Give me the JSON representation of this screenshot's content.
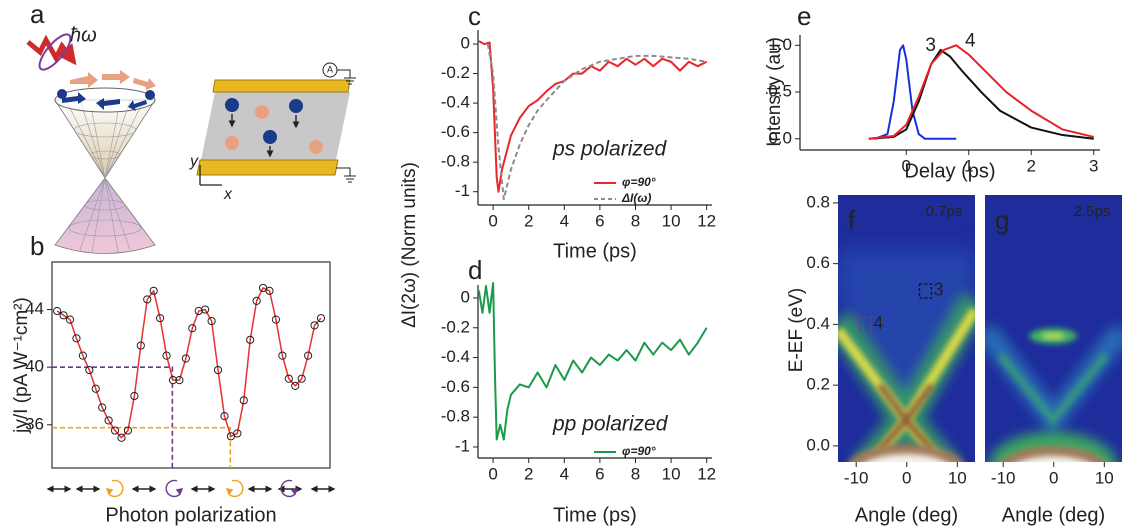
{
  "illustration": {
    "label": "a",
    "photon": "ħω",
    "meter": "A",
    "y_axis": "y",
    "x_axis": "x"
  },
  "chart_data": [
    {
      "type": "scatter",
      "label": "b",
      "ylabel": "jy/I (pA W⁻¹cm²)",
      "xlabel": "Photon polarization",
      "xlim": [
        -8,
        424
      ],
      "ylim": [
        33,
        47.3
      ],
      "yticks": [
        36,
        40,
        44
      ],
      "x": [
        0,
        10,
        20,
        30,
        40,
        50,
        60,
        70,
        80,
        90,
        100,
        110,
        120,
        130,
        140,
        150,
        160,
        170,
        180,
        190,
        200,
        210,
        220,
        230,
        240,
        250,
        260,
        270,
        280,
        290,
        300,
        310,
        320,
        330,
        340,
        350,
        360,
        370,
        380,
        390,
        400,
        410
      ],
      "series": [
        {
          "style": "marker",
          "color": "#222222",
          "values": [
            43.9,
            43.6,
            43.3,
            42.0,
            40.8,
            39.8,
            38.5,
            37.2,
            36.3,
            35.6,
            35.1,
            35.6,
            38.0,
            41.5,
            44.7,
            45.3,
            43.4,
            40.8,
            39.1,
            39.1,
            40.6,
            42.7,
            43.9,
            44.0,
            43.2,
            39.8,
            36.6,
            35.2,
            35.4,
            37.7,
            41.9,
            44.6,
            45.5,
            45.3,
            43.3,
            40.8,
            39.2,
            38.7,
            39.2,
            40.8,
            42.9,
            43.4
          ]
        },
        {
          "style": "line",
          "color": "#e8312f",
          "values": [
            43.9,
            43.6,
            43.3,
            42.0,
            40.8,
            39.8,
            38.5,
            37.2,
            36.3,
            35.6,
            35.1,
            35.6,
            38.0,
            41.5,
            44.7,
            45.3,
            43.4,
            40.8,
            39.1,
            39.1,
            40.6,
            42.7,
            43.9,
            44.0,
            43.2,
            39.8,
            36.6,
            35.2,
            35.4,
            37.7,
            41.9,
            44.6,
            45.5,
            45.3,
            43.3,
            40.8,
            39.2,
            38.7,
            39.2,
            40.8,
            42.9,
            43.4
          ]
        }
      ],
      "guides": [
        {
          "x": 179,
          "y": 40,
          "color": "#6b3a8e"
        },
        {
          "x": 269,
          "y": 35.8,
          "color": "#f0a020"
        }
      ]
    },
    {
      "type": "line",
      "label": "c",
      "ylabel": "ΔI(2ω) (Norm units)",
      "xlabel": "Time (ps)",
      "annotation": "ps polarized",
      "xlim": [
        -0.85,
        12.3
      ],
      "ylim": [
        -1.09,
        0.095
      ],
      "xticks": [
        0,
        2,
        4,
        6,
        8,
        10,
        12
      ],
      "yticks": [
        0,
        -0.2,
        -0.4,
        -0.6,
        -0.8,
        -1
      ],
      "legend": "lower right",
      "series": [
        {
          "name": "φ=90°",
          "color": "#e8262b",
          "x": [
            -0.8,
            -0.5,
            -0.2,
            0,
            0.2,
            0.3,
            0.5,
            1,
            1.5,
            2,
            2.5,
            3,
            3.5,
            4,
            4.5,
            5,
            5.5,
            6,
            6.5,
            7,
            7.5,
            8,
            8.5,
            9,
            9.5,
            10,
            10.5,
            11,
            11.5,
            12
          ],
          "values": [
            0.02,
            0,
            0.01,
            -0.3,
            -0.9,
            -1,
            -0.85,
            -0.62,
            -0.5,
            -0.42,
            -0.38,
            -0.32,
            -0.27,
            -0.25,
            -0.2,
            -0.2,
            -0.15,
            -0.18,
            -0.12,
            -0.15,
            -0.1,
            -0.14,
            -0.1,
            -0.15,
            -0.1,
            -0.12,
            -0.18,
            -0.12,
            -0.15,
            -0.12
          ]
        },
        {
          "name": "ΔI(ω)",
          "color": "#8c8c8c",
          "dash": true,
          "x": [
            -0.3,
            0,
            0.3,
            0.6,
            1,
            1.5,
            2,
            2.5,
            3,
            4,
            5,
            6,
            7,
            8,
            9,
            10,
            11,
            12
          ],
          "values": [
            0,
            -0.2,
            -0.7,
            -1.05,
            -0.85,
            -0.68,
            -0.55,
            -0.45,
            -0.38,
            -0.25,
            -0.17,
            -0.12,
            -0.1,
            -0.08,
            -0.08,
            -0.09,
            -0.1,
            -0.12
          ]
        }
      ]
    },
    {
      "type": "line",
      "label": "d",
      "xlabel": "Time (ps)",
      "annotation": "pp polarized",
      "xlim": [
        -0.85,
        12.3
      ],
      "ylim": [
        -1.074,
        0.087
      ],
      "xticks": [
        0,
        2,
        4,
        6,
        8,
        10,
        12
      ],
      "yticks": [
        0,
        -0.2,
        -0.4,
        -0.6,
        -0.8,
        -1
      ],
      "legend": "lower right",
      "series": [
        {
          "name": "φ=90°",
          "color": "#1a9a4a",
          "x": [
            -0.8,
            -0.6,
            -0.4,
            -0.2,
            0,
            0.1,
            0.2,
            0.4,
            0.6,
            0.8,
            1,
            1.5,
            2,
            2.5,
            3,
            3.5,
            4,
            4.5,
            5,
            5.5,
            6,
            6.5,
            7,
            7.5,
            8,
            8.5,
            9,
            9.5,
            10,
            10.5,
            11,
            11.5,
            12
          ],
          "values": [
            0.05,
            -0.1,
            0.08,
            -0.1,
            0.1,
            -0.5,
            -0.95,
            -0.85,
            -0.95,
            -0.75,
            -0.65,
            -0.58,
            -0.6,
            -0.5,
            -0.6,
            -0.45,
            -0.55,
            -0.42,
            -0.5,
            -0.4,
            -0.45,
            -0.38,
            -0.42,
            -0.35,
            -0.42,
            -0.3,
            -0.38,
            -0.3,
            -0.35,
            -0.28,
            -0.38,
            -0.3,
            -0.2
          ]
        }
      ]
    },
    {
      "type": "line",
      "label": "e",
      "ylabel": "Intensity (au)",
      "xlabel": "Delay (ps)",
      "xlim": [
        -1.7,
        3.1
      ],
      "ylim": [
        -0.12,
        1.11
      ],
      "xticks": [
        0,
        1,
        2,
        3
      ],
      "yticks": [
        {
          "value": 0,
          "label": "0.0"
        },
        0.5,
        {
          "value": 1,
          "label": "1.0"
        }
      ],
      "series": [
        {
          "color": "#1a2ee0",
          "x": [
            -0.5,
            -0.3,
            -0.2,
            -0.1,
            -0.05,
            0,
            0.1,
            0.2,
            0.3,
            0.5,
            0.8
          ],
          "values": [
            0,
            0.05,
            0.4,
            0.95,
            1.0,
            0.85,
            0.3,
            0.05,
            0,
            0,
            0
          ]
        },
        {
          "name": "3",
          "color": "#111111",
          "x": [
            -0.6,
            -0.2,
            0,
            0.2,
            0.4,
            0.55,
            0.7,
            0.9,
            1.2,
            1.5,
            2,
            2.5,
            3
          ],
          "values": [
            0,
            0.02,
            0.1,
            0.4,
            0.8,
            0.95,
            0.88,
            0.72,
            0.5,
            0.3,
            0.12,
            0.04,
            0
          ]
        },
        {
          "name": "4",
          "color": "#e8202a",
          "x": [
            -0.6,
            -0.2,
            0,
            0.2,
            0.4,
            0.6,
            0.8,
            1,
            1.3,
            1.6,
            2,
            2.5,
            3
          ],
          "values": [
            0,
            0.03,
            0.15,
            0.45,
            0.8,
            0.95,
            1.0,
            0.9,
            0.7,
            0.5,
            0.3,
            0.1,
            0.02
          ]
        }
      ]
    },
    {
      "type": "image",
      "label": "f",
      "ylabel": "E-EF (eV)",
      "xlabel": "Angle (deg)",
      "annotation": "0.7ps",
      "xlim": [
        -13.6,
        13.5
      ],
      "ylim": [
        -0.053,
        0.826
      ],
      "xticks": [
        -10,
        0,
        10
      ],
      "yticks": [
        {
          "value": 0,
          "label": "0.0"
        },
        0.2,
        0.4,
        0.6,
        0.8
      ],
      "markers": [
        {
          "label": "3",
          "x": 3.7,
          "y": 0.51,
          "color": "#111111"
        },
        {
          "label": "4",
          "x": -8.2,
          "y": 0.4,
          "color": "#d02020"
        }
      ]
    },
    {
      "type": "image",
      "label": "g",
      "xlabel": "Angle (deg)",
      "annotation": "2.5ps",
      "xlim": [
        -13.6,
        13.5
      ],
      "ylim": [
        -0.053,
        0.826
      ],
      "xticks": [
        -10,
        0,
        10
      ]
    }
  ]
}
